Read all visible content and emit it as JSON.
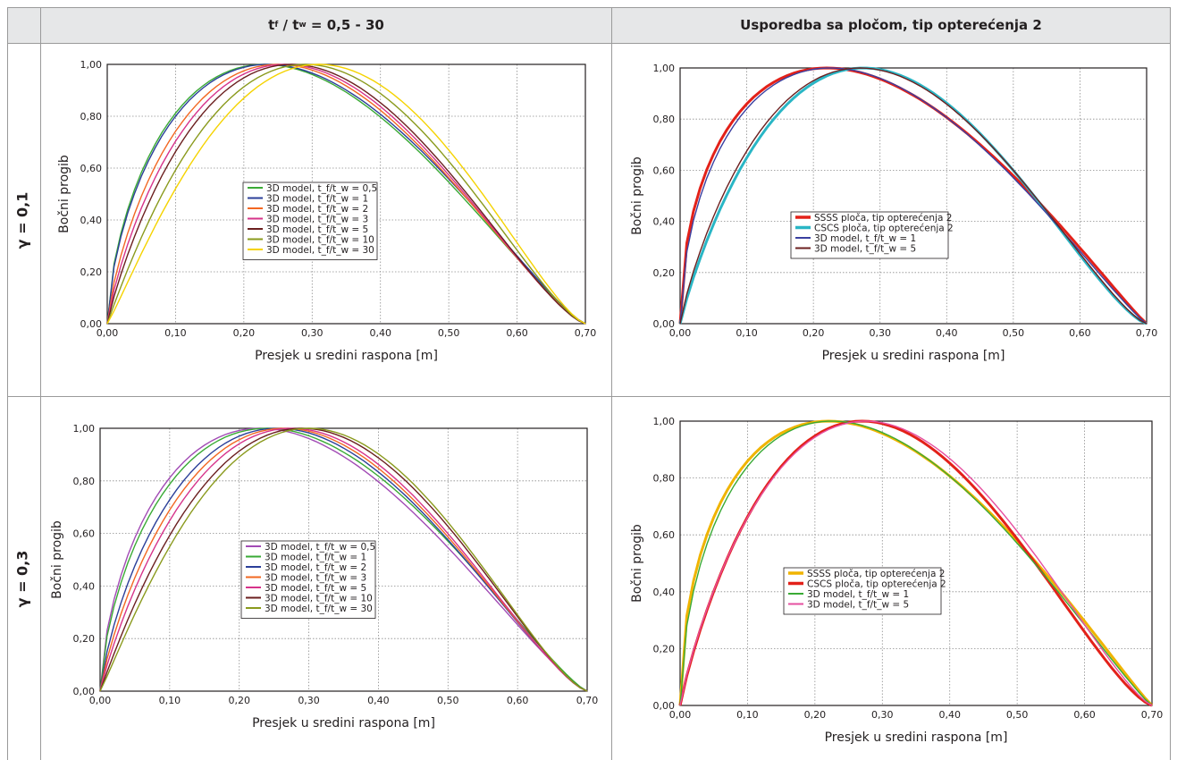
{
  "headers": {
    "left_main": "t",
    "left_sub_f": "f",
    "left_slash": " / t",
    "left_sub_w": "w",
    "left_rest": " = 0,5 - 30",
    "right": "Usporedba sa pločom, tip opterećenja 2"
  },
  "row_labels": [
    "γ = 0,1",
    "γ = 0,3"
  ],
  "chart_data": [
    {
      "type": "line",
      "xlabel": "Presjek u sredini raspona [m]",
      "ylabel": "Bočni progib",
      "xlim": [
        0,
        0.7
      ],
      "ylim": [
        0,
        1
      ],
      "xticks": [
        "0,00",
        "0,10",
        "0,20",
        "0,30",
        "0,40",
        "0,50",
        "0,60",
        "0,70"
      ],
      "yticks": [
        "0,00",
        "0,20",
        "0,40",
        "0,60",
        "0,80",
        "1,00"
      ],
      "grid": true,
      "legend_position": "center",
      "series": [
        {
          "name": "3D model, t_f/t_w = 0,5",
          "color": "#3aaa35",
          "peak_x": 0.23,
          "shape": 1.9
        },
        {
          "name": "3D model, t_f/t_w = 1",
          "color": "#2b3f99",
          "peak_x": 0.235,
          "shape": 1.9
        },
        {
          "name": "3D model, t_f/t_w = 2",
          "color": "#f26722",
          "peak_x": 0.25,
          "shape": 2.1
        },
        {
          "name": "3D model, t_f/t_w = 3",
          "color": "#d6338a",
          "peak_x": 0.26,
          "shape": 2.2
        },
        {
          "name": "3D model, t_f/t_w = 5",
          "color": "#6b1f1f",
          "peak_x": 0.27,
          "shape": 2.3
        },
        {
          "name": "3D model, t_f/t_w = 10",
          "color": "#8a9a1d",
          "peak_x": 0.29,
          "shape": 2.4
        },
        {
          "name": "3D model, t_f/t_w = 30",
          "color": "#f5d300",
          "peak_x": 0.31,
          "shape": 2.5
        }
      ]
    },
    {
      "type": "line",
      "xlabel": "Presjek u sredini raspona [m]",
      "ylabel": "Bočni progib",
      "xlim": [
        0,
        0.7
      ],
      "ylim": [
        0,
        1
      ],
      "xticks": [
        "0,00",
        "0,10",
        "0,20",
        "0,30",
        "0,40",
        "0,50",
        "0,60",
        "0,70"
      ],
      "yticks": [
        "0,00",
        "0,20",
        "0,40",
        "0,60",
        "0,80",
        "1,00"
      ],
      "grid": true,
      "legend_position": "center",
      "series": [
        {
          "name": "SSSS ploča, tip opterećenja 2",
          "color": "#e32119",
          "peak_x": 0.22,
          "shape": 1.6,
          "width": 3
        },
        {
          "name": "CSCS ploča, tip opterećenja 2",
          "color": "#29b6c5",
          "peak_x": 0.275,
          "shape": 2.3,
          "width": 3
        },
        {
          "name": "3D model, t_f/t_w = 1",
          "color": "#3a3fa0",
          "peak_x": 0.225,
          "shape": 1.7
        },
        {
          "name": "3D model, t_f/t_w = 5",
          "color": "#6b1f1f",
          "peak_x": 0.27,
          "shape": 2.2
        }
      ]
    },
    {
      "type": "line",
      "xlabel": "Presjek u sredini raspona [m]",
      "ylabel": "Bočni progib",
      "xlim": [
        0,
        0.7
      ],
      "ylim": [
        0,
        1
      ],
      "xticks": [
        "0,00",
        "0,10",
        "0,20",
        "0,30",
        "0,40",
        "0,50",
        "0,60",
        "0,70"
      ],
      "yticks": [
        "0,00",
        "0,20",
        "0,40",
        "0,60",
        "0,80",
        "1,00"
      ],
      "grid": true,
      "legend_position": "center",
      "series": [
        {
          "name": "3D model, t_f/t_w = 0,5",
          "color": "#a24bb5",
          "peak_x": 0.23,
          "shape": 1.9
        },
        {
          "name": "3D model, t_f/t_w = 1",
          "color": "#3aaa35",
          "peak_x": 0.24,
          "shape": 1.9
        },
        {
          "name": "3D model, t_f/t_w = 2",
          "color": "#2b3f99",
          "peak_x": 0.255,
          "shape": 2.1
        },
        {
          "name": "3D model, t_f/t_w = 3",
          "color": "#f26722",
          "peak_x": 0.265,
          "shape": 2.2
        },
        {
          "name": "3D model, t_f/t_w = 5",
          "color": "#d6338a",
          "peak_x": 0.275,
          "shape": 2.3
        },
        {
          "name": "3D model, t_f/t_w = 10",
          "color": "#6b1f1f",
          "peak_x": 0.29,
          "shape": 2.4
        },
        {
          "name": "3D model, t_f/t_w = 30",
          "color": "#8a9a1d",
          "peak_x": 0.3,
          "shape": 2.5
        }
      ]
    },
    {
      "type": "line",
      "xlabel": "Presjek u sredini raspona [m]",
      "ylabel": "Bočni progib",
      "xlim": [
        0,
        0.7
      ],
      "ylim": [
        0,
        1
      ],
      "xticks": [
        "0,00",
        "0,10",
        "0,20",
        "0,30",
        "0,40",
        "0,50",
        "0,60",
        "0,70"
      ],
      "yticks": [
        "0,00",
        "0,20",
        "0,40",
        "0,60",
        "0,80",
        "1,00"
      ],
      "grid": true,
      "legend_position": "center",
      "series": [
        {
          "name": "SSSS ploča, tip opterećenja 2",
          "color": "#f0b400",
          "peak_x": 0.22,
          "shape": 1.6,
          "width": 3
        },
        {
          "name": "CSCS ploča, tip opterećenja 2",
          "color": "#e32119",
          "peak_x": 0.27,
          "shape": 2.3,
          "width": 3
        },
        {
          "name": "3D model, t_f/t_w = 1",
          "color": "#3aaa35",
          "peak_x": 0.225,
          "shape": 1.7
        },
        {
          "name": "3D model, t_f/t_w = 5",
          "color": "#e64fa0",
          "peak_x": 0.275,
          "shape": 2.2
        }
      ]
    }
  ]
}
